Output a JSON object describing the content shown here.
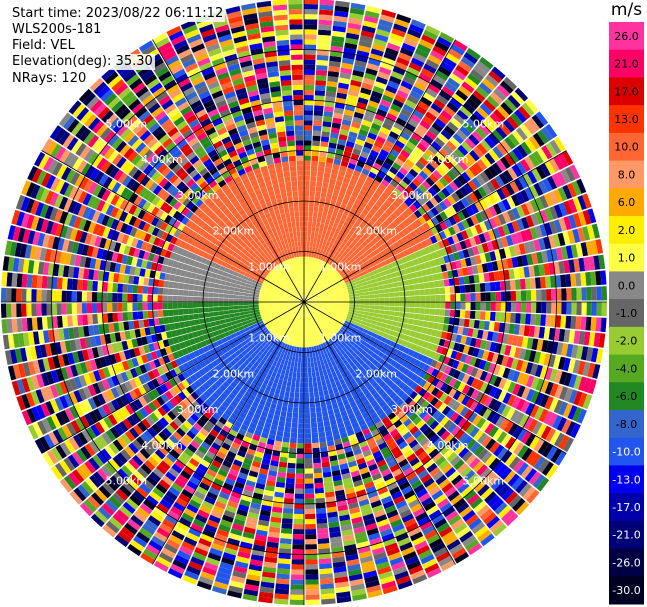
{
  "header": {
    "start_time": "Start time: 2023/08/22 06:11:12",
    "instrument": "WLS200s-181",
    "field": "Field: VEL",
    "elevation": "Elevation(deg): 35.30",
    "nrays": "NRays: 120"
  },
  "chart_data": {
    "type": "heatmap",
    "projection": "polar-ppi",
    "field": "VEL",
    "nrays": 120,
    "elevation_deg": 35.3,
    "max_range_km": 6.0,
    "range_rings_km": [
      1.0,
      2.0,
      3.0,
      4.0,
      5.0
    ],
    "ring_labels": [
      "1.00km",
      "2.00km",
      "3.00km",
      "4.00km",
      "5.00km"
    ],
    "colorbar": {
      "unit": "m/s",
      "ticks": [
        26.0,
        21.0,
        17.0,
        13.0,
        10.0,
        8.0,
        6.0,
        2.0,
        1.0,
        0.0,
        -1.0,
        -2.0,
        -4.0,
        -6.0,
        -8.0,
        -10.0,
        -13.0,
        -17.0,
        -21.0,
        -26.0,
        -30.0
      ],
      "tick_labels": [
        "26.0",
        "21.0",
        "17.0",
        "13.0",
        "10.0",
        "8.0",
        "6.0",
        "2.0",
        "1.0",
        "0.0",
        "-1.0",
        "-2.0",
        "-4.0",
        "-6.0",
        "-8.0",
        "-10.0",
        "-13.0",
        "-17.0",
        "-21.0",
        "-26.0",
        "-30.0"
      ],
      "colors": [
        "#ff33a0",
        "#ff0066",
        "#dd0000",
        "#ff3300",
        "#ff6633",
        "#ff9966",
        "#ffaa00",
        "#ffee00",
        "#ffff44",
        "#888888",
        "#666666",
        "#99cc33",
        "#55aa22",
        "#228822",
        "#3366cc",
        "#2255ee",
        "#0000ee",
        "#0000aa",
        "#000077",
        "#000044",
        "#000022"
      ]
    },
    "velocity_pattern": {
      "north_sector_ms": 10.0,
      "center_ms": 1.0,
      "east_ms": -2.0,
      "south_sector_ms": -10.0,
      "southwest_ms": -6.0,
      "west_band_ms": 0.0,
      "valid_range_km": 2.8
    }
  }
}
